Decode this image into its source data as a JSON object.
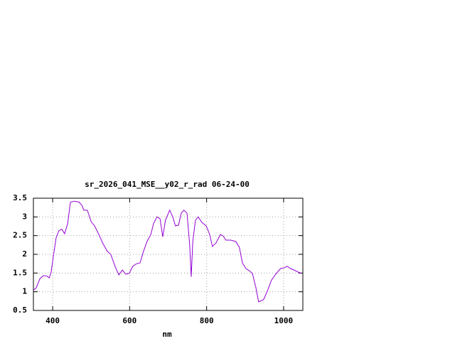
{
  "chart_data": {
    "type": "line",
    "title": "sr_2026_041_MSE__y02_r_rad 06-24-00",
    "x_label": "nm",
    "x": [
      350,
      357,
      367,
      376,
      385,
      391,
      396,
      402,
      409,
      416,
      424,
      431,
      439,
      446,
      455,
      468,
      476,
      481,
      490,
      500,
      509,
      520,
      531,
      542,
      551,
      562,
      572,
      581,
      590,
      599,
      608,
      618,
      627,
      636,
      645,
      655,
      662,
      671,
      679,
      686,
      693,
      704,
      712,
      719,
      727,
      734,
      741,
      749,
      756,
      760,
      764,
      771,
      778,
      788,
      799,
      808,
      815,
      824,
      836,
      843,
      850,
      863,
      876,
      885,
      893,
      902,
      911,
      919,
      928,
      935,
      948,
      959,
      968,
      981,
      992,
      1002,
      1009,
      1018,
      1027,
      1037,
      1046
    ],
    "series": [
      {
        "color": "#9400d3",
        "values": [
          1.05,
          1.1,
          1.35,
          1.43,
          1.42,
          1.37,
          1.52,
          1.96,
          2.44,
          2.63,
          2.67,
          2.55,
          2.82,
          3.39,
          3.42,
          3.4,
          3.31,
          3.18,
          3.18,
          2.87,
          2.76,
          2.53,
          2.28,
          2.08,
          2.0,
          1.68,
          1.45,
          1.58,
          1.47,
          1.49,
          1.68,
          1.75,
          1.77,
          2.08,
          2.34,
          2.53,
          2.82,
          3.0,
          2.95,
          2.47,
          2.91,
          3.18,
          3.0,
          2.76,
          2.78,
          3.1,
          3.18,
          3.1,
          2.25,
          1.4,
          2.34,
          2.91,
          3.0,
          2.85,
          2.76,
          2.53,
          2.21,
          2.3,
          2.53,
          2.49,
          2.38,
          2.38,
          2.34,
          2.19,
          1.77,
          1.62,
          1.56,
          1.49,
          1.11,
          0.73,
          0.79,
          1.05,
          1.3,
          1.49,
          1.62,
          1.64,
          1.68,
          1.62,
          1.58,
          1.53,
          1.49
        ]
      }
    ],
    "xlim": [
      350,
      1050
    ],
    "xticks": [
      400,
      600,
      800,
      1000
    ],
    "ylim": [
      0.5,
      3.5
    ],
    "yticks": [
      0.5,
      1,
      1.5,
      2,
      2.5,
      3,
      3.5
    ],
    "grid": true
  }
}
